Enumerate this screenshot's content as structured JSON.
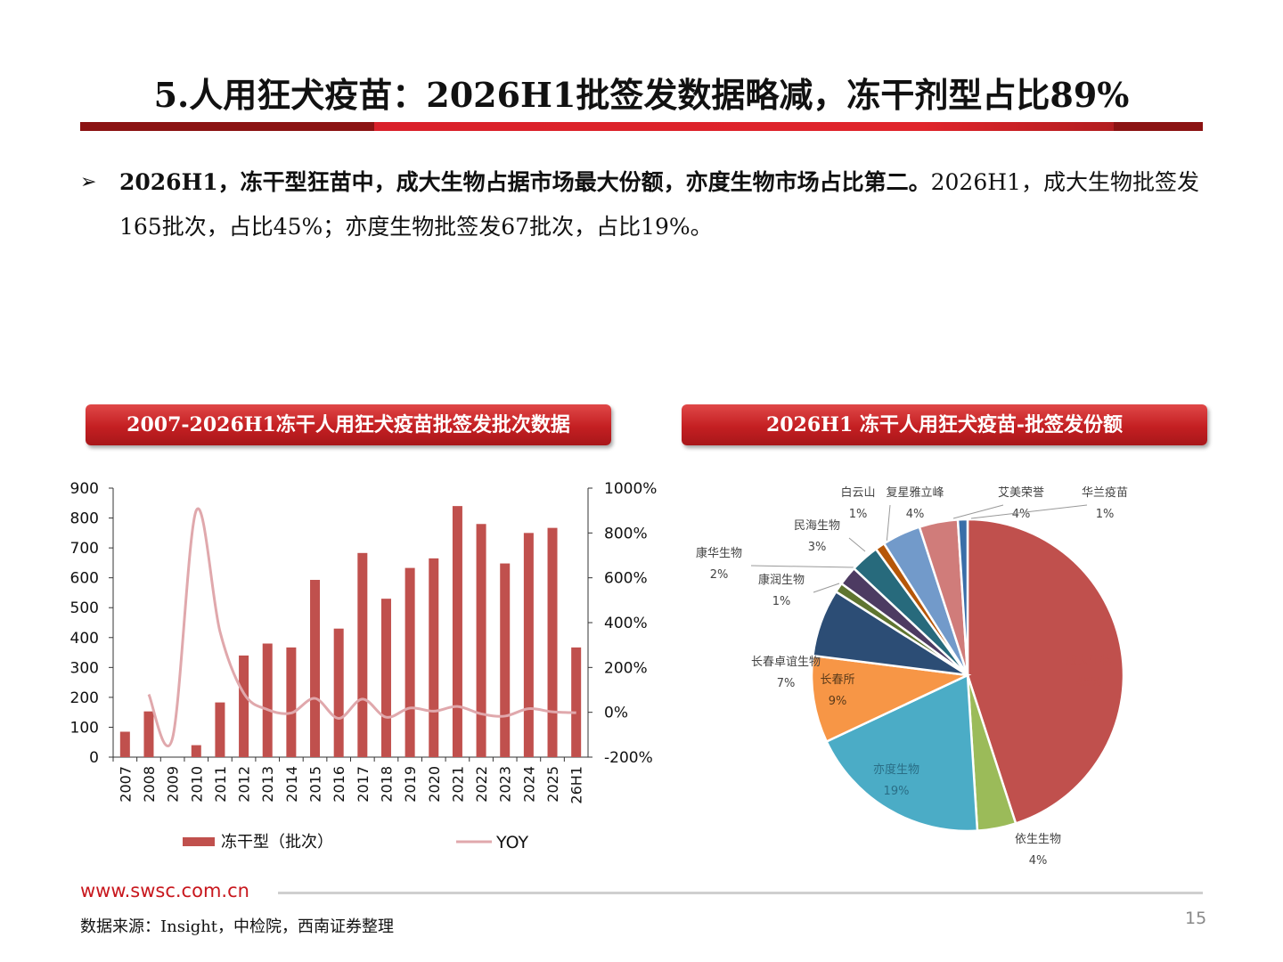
{
  "slide": {
    "title": "5.人用狂犬疫苗：2026H1批签发数据略减，冻干剂型占比89%",
    "bullet_marker": "➢",
    "bullet_bold": "2026H1，冻干型狂苗中，成大生物占据市场最大份额，亦度生物市场占比第二。",
    "bullet_normal": "2026H1，成大生物批签发165批次，占比45%；亦度生物批签发67批次，占比19%。",
    "footer_url": "www.swsc.com.cn",
    "footer_source": "数据来源：Insight，中检院，西南证券整理",
    "page_number": "15",
    "accent_color": "#c8171d"
  },
  "panels": {
    "left_title": "2007-2026H1冻干人用狂犬疫苗批签发批次数据",
    "right_title": "2026H1 冻干人用狂犬疫苗-批签发份额"
  },
  "chart_data": [
    {
      "type": "bar",
      "categories": [
        "2007",
        "2008",
        "2009",
        "2010",
        "2011",
        "2012",
        "2013",
        "2014",
        "2015",
        "2016",
        "2017",
        "2018",
        "2019",
        "2020",
        "2021",
        "2022",
        "2023",
        "2024",
        "2025",
        "26H1"
      ],
      "series": [
        {
          "name": "冻干型（批次）",
          "type": "bar",
          "color": "#c0504d",
          "axis": "left",
          "values": [
            85,
            153,
            0,
            40,
            183,
            340,
            380,
            367,
            593,
            430,
            683,
            530,
            633,
            665,
            840,
            780,
            648,
            750,
            767,
            367
          ]
        },
        {
          "name": "YOY",
          "type": "line",
          "color": "#e0a8ac",
          "axis": "right",
          "values": [
            null,
            80,
            -115,
            900,
            360,
            85,
            12,
            -3,
            62,
            -27,
            59,
            -22,
            19,
            5,
            26,
            -7,
            -17,
            16,
            2,
            -2
          ]
        }
      ],
      "y_left": {
        "min": 0,
        "max": 900,
        "ticks": [
          "0",
          "100",
          "200",
          "300",
          "400",
          "500",
          "600",
          "700",
          "800",
          "900"
        ]
      },
      "y_right": {
        "min": -200,
        "max": 1000,
        "ticks": [
          "-200%",
          "0%",
          "200%",
          "400%",
          "600%",
          "800%",
          "1000%"
        ]
      },
      "legend": "bottom"
    },
    {
      "type": "pie",
      "slices": [
        {
          "label": "成大生物",
          "value": 45,
          "pct": "45%",
          "color": "#c0504d"
        },
        {
          "label": "依生生物",
          "value": 4,
          "pct": "4%",
          "color": "#9bbb59"
        },
        {
          "label": "亦度生物",
          "value": 19,
          "pct": "19%",
          "color": "#4bacc6"
        },
        {
          "label": "长春所",
          "value": 9,
          "pct": "9%",
          "color": "#f79646"
        },
        {
          "label": "长春卓谊生物",
          "value": 7,
          "pct": "7%",
          "color": "#2c4d75"
        },
        {
          "label": "康润生物",
          "value": 1,
          "pct": "1%",
          "color": "#5f7530"
        },
        {
          "label": "康华生物",
          "value": 2,
          "pct": "2%",
          "color": "#4d3b62"
        },
        {
          "label": "民海生物",
          "value": 3,
          "pct": "3%",
          "color": "#276a7c"
        },
        {
          "label": "白云山",
          "value": 1,
          "pct": "1%",
          "color": "#b65708"
        },
        {
          "label": "复星雅立峰",
          "value": 4,
          "pct": "4%",
          "color": "#729aca"
        },
        {
          "label": "艾美荣誉",
          "value": 4,
          "pct": "4%",
          "color": "#d07c7a"
        },
        {
          "label": "华兰疫苗",
          "value": 1,
          "pct": "1%",
          "color": "#3a6ea8"
        }
      ]
    }
  ]
}
